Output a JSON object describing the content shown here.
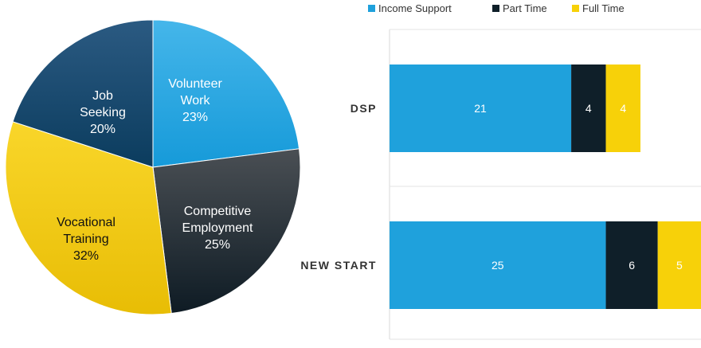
{
  "chart_data": [
    {
      "type": "pie",
      "slices": [
        {
          "label_lines": [
            "Volunteer",
            "Work"
          ],
          "percent_label": "23%",
          "value": 23,
          "gradient": [
            "#45b6ea",
            "#169ad9"
          ],
          "text_color": "#ffffff"
        },
        {
          "label_lines": [
            "Competitive",
            "Employment"
          ],
          "percent_label": "25%",
          "value": 25,
          "gradient": [
            "#4a4f54",
            "#0e1b24"
          ],
          "text_color": "#ffffff"
        },
        {
          "label_lines": [
            "Vocational",
            "Training"
          ],
          "percent_label": "32%",
          "value": 32,
          "gradient": [
            "#f9d62a",
            "#e8bd05"
          ],
          "text_color": "#111111"
        },
        {
          "label_lines": [
            "Job",
            "Seeking"
          ],
          "percent_label": "20%",
          "value": 20,
          "gradient": [
            "#2b5a82",
            "#0b3c5e"
          ],
          "text_color": "#ffffff"
        }
      ]
    },
    {
      "type": "bar",
      "orientation": "horizontal",
      "stacked": true,
      "categories": [
        "DSP",
        "NEW START"
      ],
      "series": [
        {
          "name": "Income Support",
          "color": "#1fa1dc",
          "values": [
            21,
            25
          ],
          "label_color": "#ffffff"
        },
        {
          "name": "Part Time",
          "color": "#0f1f29",
          "values": [
            4,
            6
          ],
          "label_color": "#ffffff"
        },
        {
          "name": "Full Time",
          "color": "#f7d109",
          "values": [
            4,
            5
          ],
          "label_color": "#ffffff"
        }
      ],
      "xlim": [
        0,
        36
      ],
      "legend_position": "top",
      "grid": true
    }
  ]
}
